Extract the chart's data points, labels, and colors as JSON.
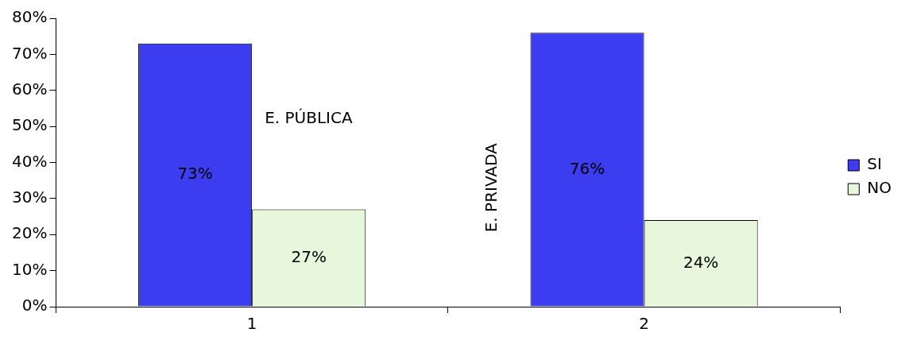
{
  "chart_data": {
    "type": "bar",
    "categories": [
      "1",
      "2"
    ],
    "series": [
      {
        "name": "SI",
        "color": "#3c3cf0",
        "values": [
          73,
          76
        ],
        "value_labels": [
          "73%",
          "76%"
        ]
      },
      {
        "name": "NO",
        "color": "#e6f7dc",
        "values": [
          27,
          24
        ],
        "value_labels": [
          "27%",
          "24%"
        ]
      }
    ],
    "ylim": [
      0,
      80
    ],
    "yticks": [
      {
        "value": 0,
        "label": "0%"
      },
      {
        "value": 10,
        "label": "10%"
      },
      {
        "value": 20,
        "label": "20%"
      },
      {
        "value": 30,
        "label": "30%"
      },
      {
        "value": 40,
        "label": "40%"
      },
      {
        "value": 50,
        "label": "50%"
      },
      {
        "value": 60,
        "label": "60%"
      },
      {
        "value": 70,
        "label": "70%"
      },
      {
        "value": 80,
        "label": "80%"
      }
    ],
    "annotations": [
      "E. PÚBLICA",
      "E. PRIVADA"
    ],
    "grid": false,
    "legend": "right"
  }
}
